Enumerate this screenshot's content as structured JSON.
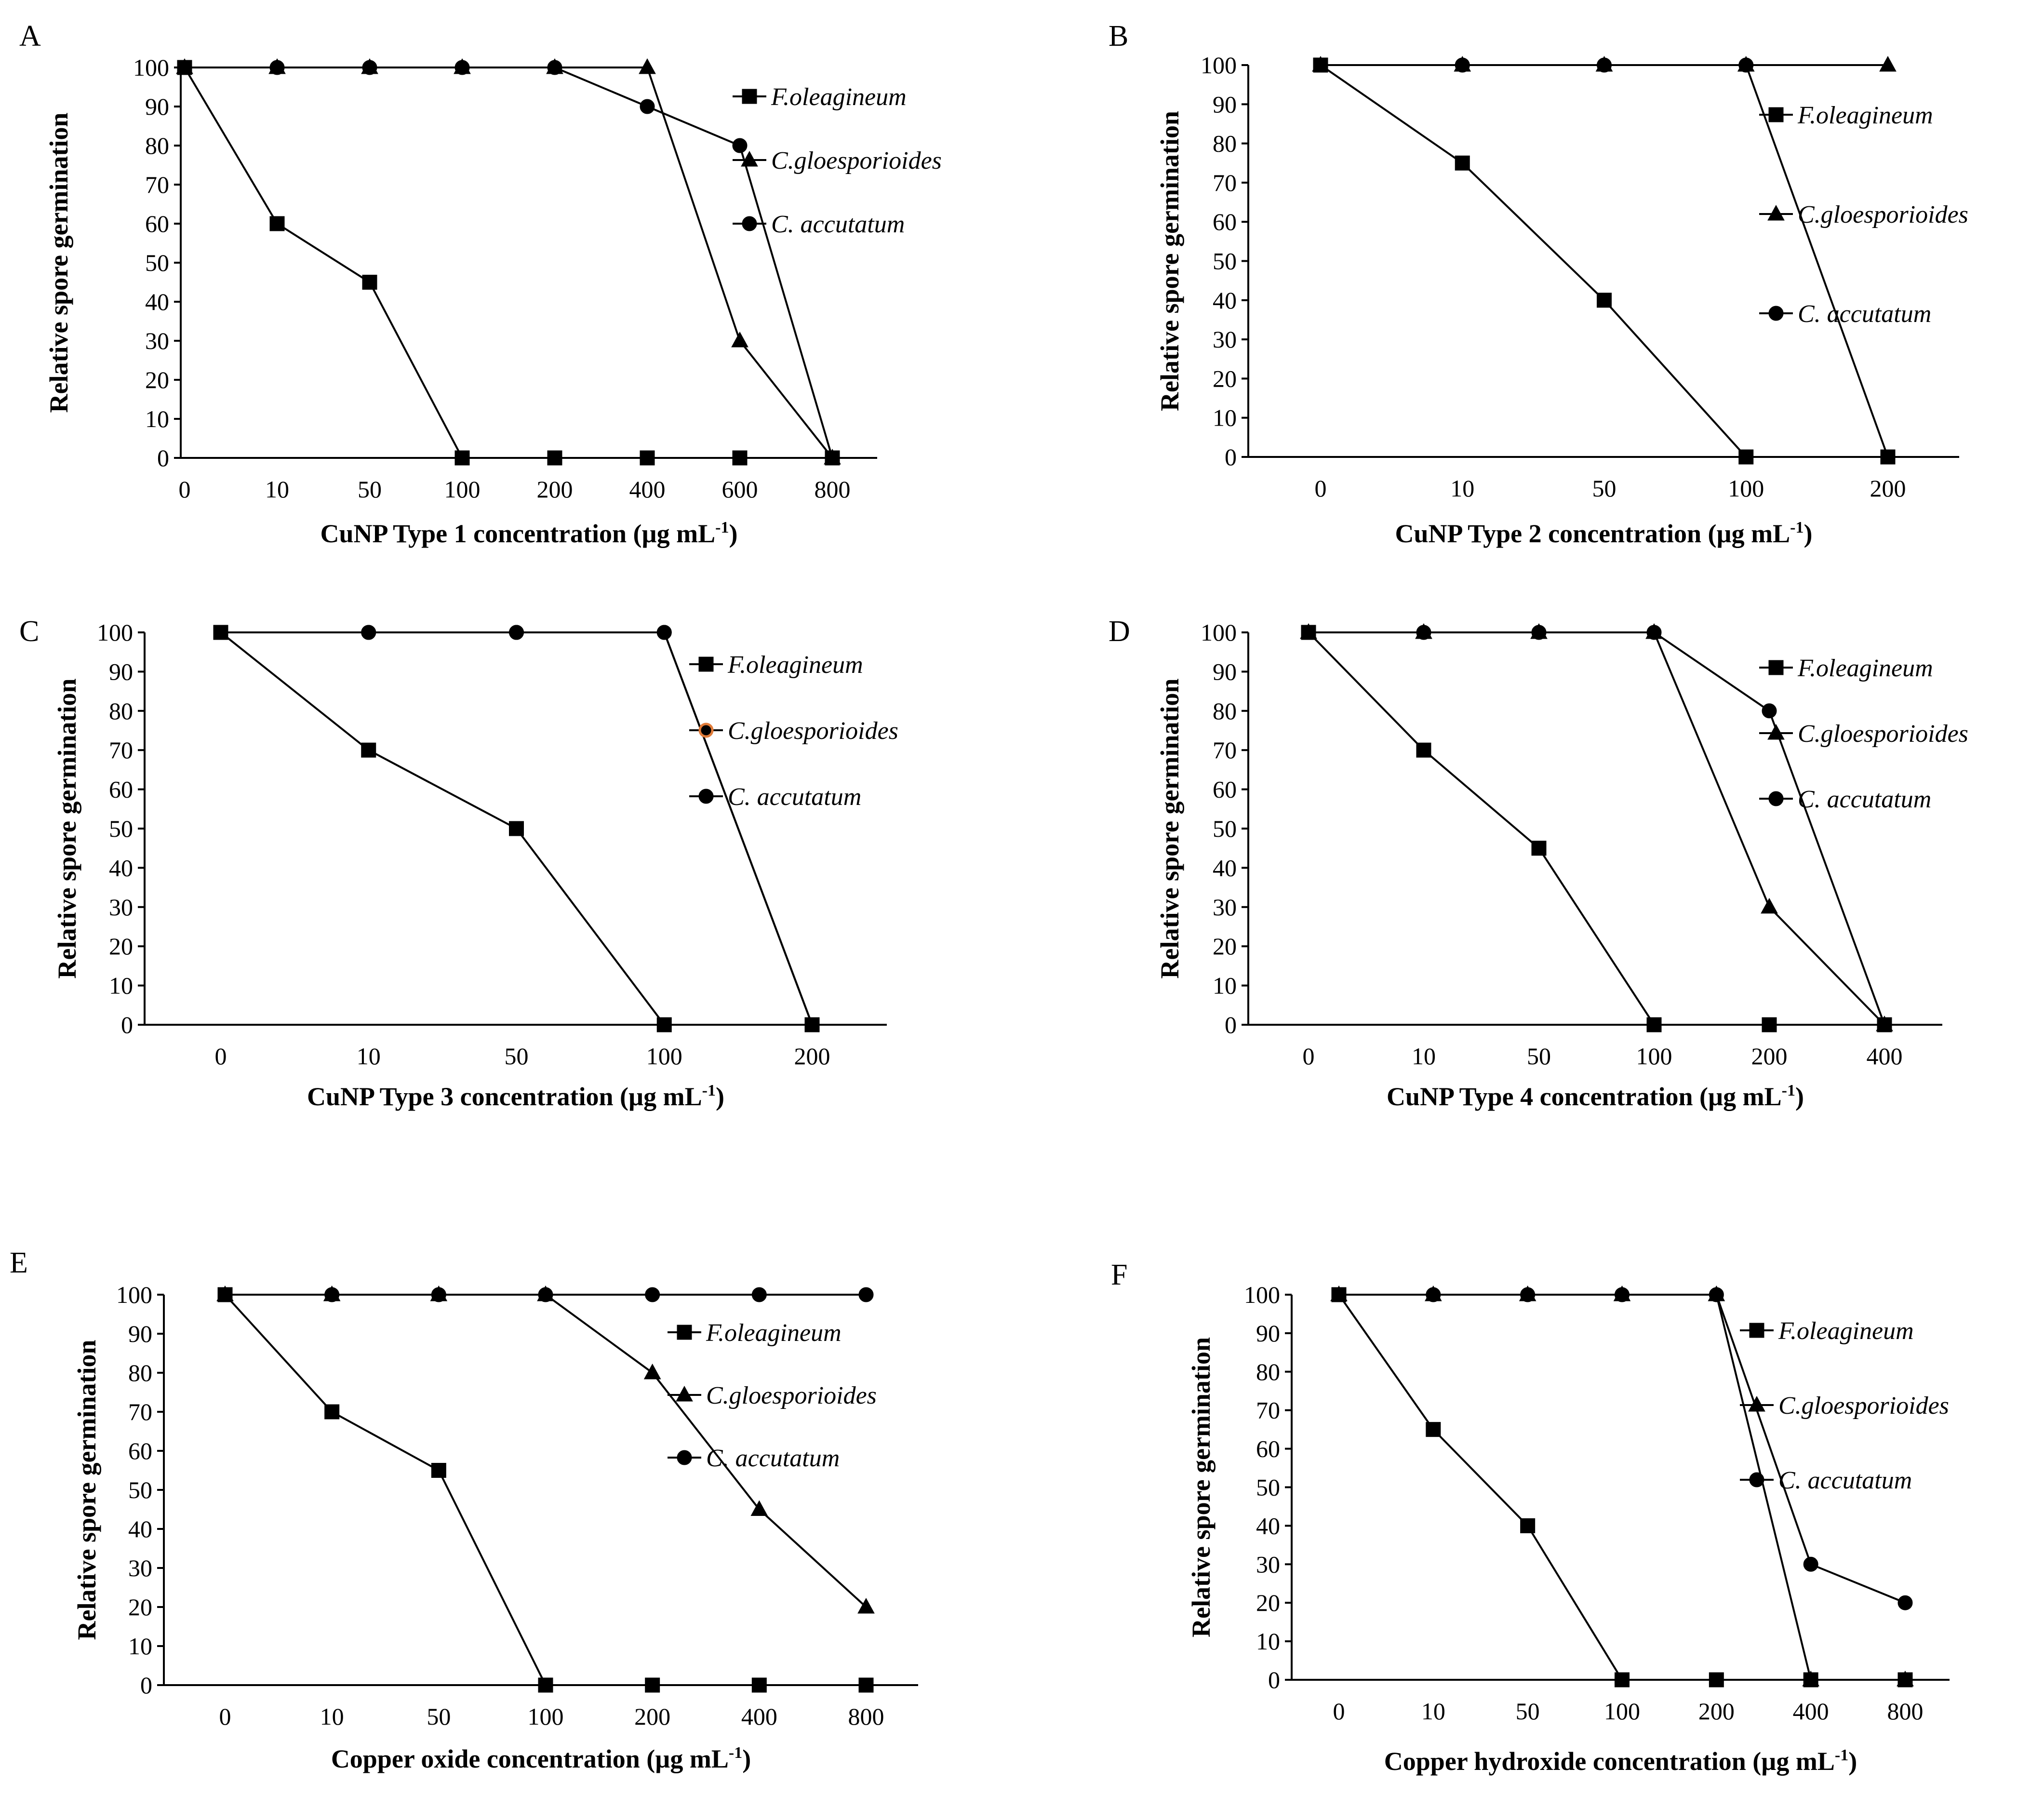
{
  "chart_data": [
    {
      "panel": "A",
      "type": "line",
      "categories": [
        "0",
        "10",
        "50",
        "100",
        "200",
        "400",
        "600",
        "800"
      ],
      "xlabel": "CuNP Type 1 concentration (µg mL",
      "xlabel_sup": "-1",
      "xlabel_end": ")",
      "ylabel": "Relative spore germination",
      "ylim": [
        0,
        100
      ],
      "yticks": [
        "0",
        "10",
        "20",
        "30",
        "40",
        "50",
        "60",
        "70",
        "80",
        "90",
        "100"
      ],
      "legend": [
        "F.oleagineum",
        "C.gloesporioides",
        "C. accutatum"
      ],
      "series": [
        {
          "name": "F.oleagineum",
          "marker": "square",
          "values": [
            100,
            60,
            45,
            0,
            0,
            0,
            0,
            0
          ]
        },
        {
          "name": "C.gloesporioides",
          "marker": "triangle",
          "values": [
            100,
            100,
            100,
            100,
            100,
            100,
            30,
            0
          ]
        },
        {
          "name": "C. accutatum",
          "marker": "circle",
          "values": [
            100,
            100,
            100,
            100,
            100,
            90,
            80,
            0
          ]
        }
      ]
    },
    {
      "panel": "B",
      "type": "line",
      "categories": [
        "0",
        "10",
        "50",
        "100",
        "200"
      ],
      "xlabel": "CuNP Type 2 concentration (µg mL",
      "xlabel_sup": "-1",
      "xlabel_end": ")",
      "ylabel": "Relative spore germination",
      "ylim": [
        0,
        100
      ],
      "yticks": [
        "0",
        "10",
        "20",
        "30",
        "40",
        "50",
        "60",
        "70",
        "80",
        "90",
        "100"
      ],
      "legend": [
        "F.oleagineum",
        "C.gloesporioides",
        "C. accutatum"
      ],
      "series": [
        {
          "name": "F.oleagineum",
          "marker": "square",
          "values": [
            100,
            75,
            40,
            0,
            0
          ]
        },
        {
          "name": "C.gloesporioides",
          "marker": "triangle",
          "values": [
            100,
            100,
            100,
            100,
            100
          ]
        },
        {
          "name": "C. accutatum",
          "marker": "circle",
          "values": [
            100,
            100,
            100,
            100,
            0
          ]
        }
      ]
    },
    {
      "panel": "C",
      "type": "line",
      "categories": [
        "0",
        "10",
        "50",
        "100",
        "200"
      ],
      "xlabel": "CuNP Type 3 concentration (µg mL",
      "xlabel_sup": "-1",
      "xlabel_end": ")",
      "ylabel": "Relative spore germination",
      "ylim": [
        0,
        100
      ],
      "yticks": [
        "0",
        "10",
        "20",
        "30",
        "40",
        "50",
        "60",
        "70",
        "80",
        "90",
        "100"
      ],
      "legend": [
        "F.oleagineum",
        "C.gloesporioides",
        "C. accutatum"
      ],
      "series": [
        {
          "name": "F.oleagineum",
          "marker": "square",
          "values": [
            100,
            70,
            50,
            0,
            0
          ]
        },
        {
          "name": "C.gloesporioides",
          "marker": "circle-orange",
          "values": [
            100,
            100,
            100,
            100,
            0
          ]
        },
        {
          "name": "C. accutatum",
          "marker": "circle",
          "values": [
            100,
            100,
            100,
            100,
            0
          ]
        }
      ]
    },
    {
      "panel": "D",
      "type": "line",
      "categories": [
        "0",
        "10",
        "50",
        "100",
        "200",
        "400"
      ],
      "xlabel": "CuNP Type 4 concentration (µg mL",
      "xlabel_sup": "-1",
      "xlabel_end": ")",
      "ylabel": "Relative spore germination",
      "ylim": [
        0,
        100
      ],
      "yticks": [
        "0",
        "10",
        "20",
        "30",
        "40",
        "50",
        "60",
        "70",
        "80",
        "90",
        "100"
      ],
      "legend": [
        "F.oleagineum",
        "C.gloesporioides",
        "C. accutatum"
      ],
      "series": [
        {
          "name": "F.oleagineum",
          "marker": "square",
          "values": [
            100,
            70,
            45,
            0,
            0,
            0
          ]
        },
        {
          "name": "C.gloesporioides",
          "marker": "triangle",
          "values": [
            100,
            100,
            100,
            100,
            30,
            0
          ]
        },
        {
          "name": "C. accutatum",
          "marker": "circle",
          "values": [
            100,
            100,
            100,
            100,
            80,
            0
          ]
        }
      ]
    },
    {
      "panel": "E",
      "type": "line",
      "categories": [
        "0",
        "10",
        "50",
        "100",
        "200",
        "400",
        "800"
      ],
      "xlabel": "Copper oxide concentration (µg mL",
      "xlabel_sup": "-1",
      "xlabel_end": ")",
      "ylabel": "Relative spore germination",
      "ylim": [
        0,
        100
      ],
      "yticks": [
        "0",
        "10",
        "20",
        "30",
        "40",
        "50",
        "60",
        "70",
        "80",
        "90",
        "100"
      ],
      "legend": [
        "F.oleagineum",
        "C.gloesporioides",
        "C. accutatum"
      ],
      "series": [
        {
          "name": "F.oleagineum",
          "marker": "square",
          "values": [
            100,
            70,
            55,
            0,
            0,
            0,
            0
          ]
        },
        {
          "name": "C.gloesporioides",
          "marker": "triangle",
          "values": [
            100,
            100,
            100,
            100,
            80,
            45,
            20
          ]
        },
        {
          "name": "C. accutatum",
          "marker": "circle",
          "values": [
            100,
            100,
            100,
            100,
            100,
            100,
            100
          ]
        }
      ]
    },
    {
      "panel": "F",
      "type": "line",
      "categories": [
        "0",
        "10",
        "50",
        "100",
        "200",
        "400",
        "800"
      ],
      "xlabel": "Copper hydroxide concentration (µg mL",
      "xlabel_sup": "-1",
      "xlabel_end": ")",
      "ylabel": "Relative spore germination",
      "ylim": [
        0,
        100
      ],
      "yticks": [
        "0",
        "10",
        "20",
        "30",
        "40",
        "50",
        "60",
        "70",
        "80",
        "90",
        "100"
      ],
      "legend": [
        "F.oleagineum",
        "C.gloesporioides",
        "C. accutatum"
      ],
      "series": [
        {
          "name": "F.oleagineum",
          "marker": "square",
          "values": [
            100,
            65,
            40,
            0,
            0,
            0,
            0
          ]
        },
        {
          "name": "C.gloesporioides",
          "marker": "triangle",
          "values": [
            100,
            100,
            100,
            100,
            100,
            0,
            0
          ]
        },
        {
          "name": "C. accutatum",
          "marker": "circle",
          "values": [
            100,
            100,
            100,
            100,
            100,
            30,
            20
          ]
        }
      ]
    }
  ]
}
